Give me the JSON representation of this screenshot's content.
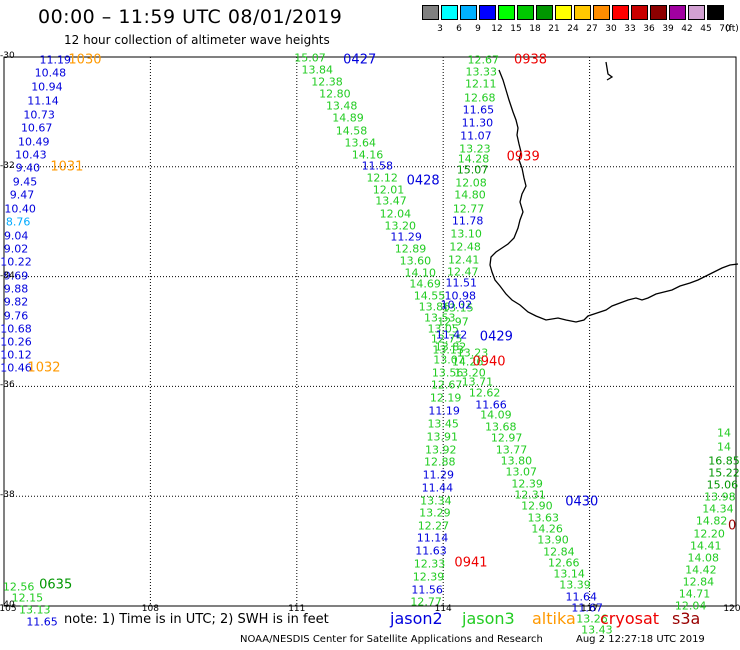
{
  "title": "00:00 – 11:59 UTC 08/01/2019",
  "subtitle": "12 hour collection of altimeter wave heights",
  "colorbar": {
    "unit": "(ft)",
    "entries": [
      {
        "color": "#808080",
        "label": "3"
      },
      {
        "color": "#00ffff",
        "label": "6"
      },
      {
        "color": "#00b0ff",
        "label": "9"
      },
      {
        "color": "#0000ff",
        "label": "12"
      },
      {
        "color": "#00ff00",
        "label": "15"
      },
      {
        "color": "#00c800",
        "label": "18"
      },
      {
        "color": "#009600",
        "label": "21"
      },
      {
        "color": "#ffff00",
        "label": "24"
      },
      {
        "color": "#ffc800",
        "label": "27"
      },
      {
        "color": "#ff8c00",
        "label": "30"
      },
      {
        "color": "#ff0000",
        "label": "33"
      },
      {
        "color": "#c80000",
        "label": "36"
      },
      {
        "color": "#8c0000",
        "label": "39"
      },
      {
        "color": "#a000a0",
        "label": "42"
      },
      {
        "color": "#d2a0d2",
        "label": "45"
      },
      {
        "color": "#000000",
        "label": "70"
      }
    ]
  },
  "axes": {
    "lon_ticks": [
      "105",
      "108",
      "111",
      "114",
      "117",
      "120"
    ],
    "lat_ticks": [
      "-30",
      "-32",
      "-34",
      "-36",
      "-38",
      "-40"
    ],
    "lon_range": [
      105,
      120
    ],
    "lat_range": [
      -30,
      -40
    ]
  },
  "colors": {
    "jason2": "#0000dd",
    "jason3": "#22cc22",
    "altika": "#ff9900",
    "cryosat": "#ee0000",
    "s3a": "#990000",
    "grid": "#000000",
    "coast": "#000000"
  },
  "observations": [
    {
      "t": "11.19",
      "lon": 106.05,
      "lat": -30.05,
      "c": "jason2"
    },
    {
      "t": "10.48",
      "lon": 105.95,
      "lat": -30.3,
      "c": "jason2"
    },
    {
      "t": "10.94",
      "lon": 105.88,
      "lat": -30.55,
      "c": "jason2"
    },
    {
      "t": "11.14",
      "lon": 105.8,
      "lat": -30.8,
      "c": "jason2"
    },
    {
      "t": "10.73",
      "lon": 105.72,
      "lat": -31.05,
      "c": "jason2"
    },
    {
      "t": "10.67",
      "lon": 105.67,
      "lat": -31.3,
      "c": "jason2"
    },
    {
      "t": "10.49",
      "lon": 105.61,
      "lat": -31.55,
      "c": "jason2"
    },
    {
      "t": "10.43",
      "lon": 105.55,
      "lat": -31.78,
      "c": "jason2"
    },
    {
      "t": "9.40",
      "lon": 105.49,
      "lat": -32.02,
      "c": "jason2"
    },
    {
      "t": "9.45",
      "lon": 105.43,
      "lat": -32.27,
      "c": "jason2"
    },
    {
      "t": "9.47",
      "lon": 105.37,
      "lat": -32.52,
      "c": "jason2"
    },
    {
      "t": "10.40",
      "lon": 105.33,
      "lat": -32.76,
      "c": "jason2"
    },
    {
      "t": "8.76",
      "lon": 105.29,
      "lat": -33.01,
      "c": "jason2_light"
    },
    {
      "t": "9.04",
      "lon": 105.25,
      "lat": -33.26,
      "c": "jason2"
    },
    {
      "t": "9.02",
      "lon": 105.21,
      "lat": -33.5,
      "c": "jason2"
    },
    {
      "t": "10.22",
      "lon": 105.17,
      "lat": -33.74,
      "c": "jason2"
    },
    {
      "t": "9.69",
      "lon": 105.13,
      "lat": -33.98,
      "c": "jason2"
    },
    {
      "t": "9.88",
      "lon": 105.09,
      "lat": -34.22,
      "c": "jason2"
    },
    {
      "t": "9.82",
      "lon": 105.05,
      "lat": -34.46,
      "c": "jason2"
    },
    {
      "t": "9.76",
      "lon": 105.02,
      "lat": -34.71,
      "c": "jason2"
    },
    {
      "t": "10.68",
      "lon": 104.99,
      "lat": -34.95,
      "c": "jason2"
    },
    {
      "t": "10.26",
      "lon": 104.96,
      "lat": -35.19,
      "c": "jason2"
    },
    {
      "t": "10.12",
      "lon": 104.93,
      "lat": -35.43,
      "c": "jason2"
    },
    {
      "t": "10.46",
      "lon": 104.9,
      "lat": -35.67,
      "c": "jason2"
    },
    {
      "t": "15.07",
      "lon": 111.27,
      "lat": -30.02,
      "c": "jason3"
    },
    {
      "t": "13.84",
      "lon": 111.42,
      "lat": -30.24,
      "c": "jason3"
    },
    {
      "t": "12.38",
      "lon": 111.62,
      "lat": -30.46,
      "c": "jason3"
    },
    {
      "t": "12.80",
      "lon": 111.78,
      "lat": -30.68,
      "c": "jason3"
    },
    {
      "t": "13.48",
      "lon": 111.92,
      "lat": -30.9,
      "c": "jason3"
    },
    {
      "t": "14.89",
      "lon": 112.05,
      "lat": -31.12,
      "c": "jason3"
    },
    {
      "t": "14.58",
      "lon": 112.12,
      "lat": -31.34,
      "c": "jason3"
    },
    {
      "t": "13.64",
      "lon": 112.3,
      "lat": -31.56,
      "c": "jason3"
    },
    {
      "t": "14.16",
      "lon": 112.45,
      "lat": -31.78,
      "c": "jason3"
    },
    {
      "t": "11.58",
      "lon": 112.65,
      "lat": -31.99,
      "c": "jason2"
    },
    {
      "t": "12.12",
      "lon": 112.75,
      "lat": -32.21,
      "c": "jason3"
    },
    {
      "t": "12.01",
      "lon": 112.88,
      "lat": -32.43,
      "c": "jason3"
    },
    {
      "t": "13.47",
      "lon": 112.93,
      "lat": -32.63,
      "c": "jason3"
    },
    {
      "t": "12.04",
      "lon": 113.02,
      "lat": -32.86,
      "c": "jason3"
    },
    {
      "t": "13.20",
      "lon": 113.12,
      "lat": -33.07,
      "c": "jason3"
    },
    {
      "t": "11.29",
      "lon": 113.24,
      "lat": -33.28,
      "c": "jason2"
    },
    {
      "t": "12.89",
      "lon": 113.33,
      "lat": -33.5,
      "c": "jason3"
    },
    {
      "t": "13.60",
      "lon": 113.43,
      "lat": -33.72,
      "c": "jason3"
    },
    {
      "t": "14.10",
      "lon": 113.53,
      "lat": -33.93,
      "c": "jason3"
    },
    {
      "t": "14.69",
      "lon": 113.63,
      "lat": -34.14,
      "c": "jason3"
    },
    {
      "t": "14.55",
      "lon": 113.72,
      "lat": -34.35,
      "c": "jason3"
    },
    {
      "t": "13.86",
      "lon": 113.82,
      "lat": -34.55,
      "c": "jason3"
    },
    {
      "t": "13.53",
      "lon": 113.93,
      "lat": -34.75,
      "c": "jason3"
    },
    {
      "t": "13.05",
      "lon": 114.0,
      "lat": -34.95,
      "c": "jason3"
    },
    {
      "t": "12.75",
      "lon": 114.07,
      "lat": -35.14,
      "c": "jason3"
    },
    {
      "t": "13.13",
      "lon": 114.1,
      "lat": -35.34,
      "c": "jason3"
    },
    {
      "t": "12.67",
      "lon": 114.82,
      "lat": -30.05,
      "c": "jason3"
    },
    {
      "t": "13.33",
      "lon": 114.78,
      "lat": -30.28,
      "c": "jason3"
    },
    {
      "t": "12.11",
      "lon": 114.77,
      "lat": -30.5,
      "c": "jason3"
    },
    {
      "t": "12.68",
      "lon": 114.75,
      "lat": -30.74,
      "c": "jason3"
    },
    {
      "t": "11.65",
      "lon": 114.72,
      "lat": -30.97,
      "c": "jason2"
    },
    {
      "t": "11.30",
      "lon": 114.7,
      "lat": -31.21,
      "c": "jason2"
    },
    {
      "t": "11.07",
      "lon": 114.67,
      "lat": -31.44,
      "c": "jason2"
    },
    {
      "t": "13.23",
      "lon": 114.65,
      "lat": -31.67,
      "c": "jason3"
    },
    {
      "t": "14.28",
      "lon": 114.62,
      "lat": -31.85,
      "c": "jason3"
    },
    {
      "t": "15.07",
      "lon": 114.6,
      "lat": -32.05,
      "c": "jason3_dark"
    },
    {
      "t": "12.08",
      "lon": 114.57,
      "lat": -32.29,
      "c": "jason3"
    },
    {
      "t": "14.80",
      "lon": 114.55,
      "lat": -32.52,
      "c": "jason3"
    },
    {
      "t": "12.77",
      "lon": 114.52,
      "lat": -32.76,
      "c": "jason3"
    },
    {
      "t": "11.78",
      "lon": 114.5,
      "lat": -32.99,
      "c": "jason2"
    },
    {
      "t": "13.10",
      "lon": 114.47,
      "lat": -33.23,
      "c": "jason3"
    },
    {
      "t": "12.48",
      "lon": 114.45,
      "lat": -33.46,
      "c": "jason3"
    },
    {
      "t": "12.41",
      "lon": 114.42,
      "lat": -33.69,
      "c": "jason3"
    },
    {
      "t": "12.47",
      "lon": 114.4,
      "lat": -33.92,
      "c": "jason3"
    },
    {
      "t": "11.51",
      "lon": 114.37,
      "lat": -34.12,
      "c": "jason2"
    },
    {
      "t": "10.98",
      "lon": 114.35,
      "lat": -34.35,
      "c": "jason2"
    },
    {
      "t": "13.15",
      "lon": 114.3,
      "lat": -34.58,
      "c": "jason3"
    },
    {
      "t": "10.02",
      "lon": 114.27,
      "lat": -34.51,
      "c": "jason2"
    },
    {
      "t": "12.97",
      "lon": 114.2,
      "lat": -34.83,
      "c": "jason3"
    },
    {
      "t": "11.42",
      "lon": 114.17,
      "lat": -35.06,
      "c": "jason2"
    },
    {
      "t": "13.82",
      "lon": 114.15,
      "lat": -35.29,
      "c": "jason3"
    },
    {
      "t": "13.07",
      "lon": 114.12,
      "lat": -35.52,
      "c": "jason3"
    },
    {
      "t": "13.56",
      "lon": 114.09,
      "lat": -35.75,
      "c": "jason3"
    },
    {
      "t": "12.67",
      "lon": 114.07,
      "lat": -35.98,
      "c": "jason3"
    },
    {
      "t": "12.19",
      "lon": 114.05,
      "lat": -36.22,
      "c": "jason3"
    },
    {
      "t": "11.19",
      "lon": 114.02,
      "lat": -36.45,
      "c": "jason2"
    },
    {
      "t": "13.45",
      "lon": 114.0,
      "lat": -36.68,
      "c": "jason3"
    },
    {
      "t": "13.91",
      "lon": 113.98,
      "lat": -36.92,
      "c": "jason3"
    },
    {
      "t": "13.92",
      "lon": 113.95,
      "lat": -37.15,
      "c": "jason3"
    },
    {
      "t": "12.88",
      "lon": 113.93,
      "lat": -37.38,
      "c": "jason3"
    },
    {
      "t": "11.29",
      "lon": 113.9,
      "lat": -37.61,
      "c": "jason2"
    },
    {
      "t": "11.44",
      "lon": 113.88,
      "lat": -37.85,
      "c": "jason2"
    },
    {
      "t": "13.34",
      "lon": 113.85,
      "lat": -38.08,
      "c": "jason3"
    },
    {
      "t": "13.29",
      "lon": 113.83,
      "lat": -38.31,
      "c": "jason3"
    },
    {
      "t": "12.27",
      "lon": 113.8,
      "lat": -38.54,
      "c": "jason3"
    },
    {
      "t": "11.14",
      "lon": 113.78,
      "lat": -38.77,
      "c": "jason2"
    },
    {
      "t": "11.63",
      "lon": 113.75,
      "lat": -39.0,
      "c": "jason2"
    },
    {
      "t": "12.33",
      "lon": 113.72,
      "lat": -39.24,
      "c": "jason3"
    },
    {
      "t": "12.39",
      "lon": 113.7,
      "lat": -39.47,
      "c": "jason3"
    },
    {
      "t": "11.56",
      "lon": 113.67,
      "lat": -39.7,
      "c": "jason2"
    },
    {
      "t": "12.77",
      "lon": 113.65,
      "lat": -39.93,
      "c": "jason3"
    },
    {
      "t": "13.23",
      "lon": 114.6,
      "lat": -35.4,
      "c": "jason3"
    },
    {
      "t": "14.26",
      "lon": 114.5,
      "lat": -35.55,
      "c": "jason3"
    },
    {
      "t": "13.20",
      "lon": 114.55,
      "lat": -35.75,
      "c": "jason3"
    },
    {
      "t": "13.71",
      "lon": 114.7,
      "lat": -35.92,
      "c": "jason3"
    },
    {
      "t": "12.62",
      "lon": 114.85,
      "lat": -36.12,
      "c": "jason3"
    },
    {
      "t": "11.66",
      "lon": 114.98,
      "lat": -36.33,
      "c": "jason2"
    },
    {
      "t": "14.09",
      "lon": 115.08,
      "lat": -36.53,
      "c": "jason3"
    },
    {
      "t": "13.68",
      "lon": 115.18,
      "lat": -36.74,
      "c": "jason3"
    },
    {
      "t": "12.97",
      "lon": 115.3,
      "lat": -36.94,
      "c": "jason3"
    },
    {
      "t": "13.77",
      "lon": 115.4,
      "lat": -37.15,
      "c": "jason3"
    },
    {
      "t": "13.80",
      "lon": 115.5,
      "lat": -37.36,
      "c": "jason3"
    },
    {
      "t": "13.07",
      "lon": 115.6,
      "lat": -37.56,
      "c": "jason3"
    },
    {
      "t": "12.39",
      "lon": 115.72,
      "lat": -37.77,
      "c": "jason3"
    },
    {
      "t": "12.31",
      "lon": 115.78,
      "lat": -37.98,
      "c": "jason3"
    },
    {
      "t": "12.90",
      "lon": 115.92,
      "lat": -38.18,
      "c": "jason3"
    },
    {
      "t": "13.63",
      "lon": 116.05,
      "lat": -38.39,
      "c": "jason3"
    },
    {
      "t": "14.26",
      "lon": 116.13,
      "lat": -38.6,
      "c": "jason3"
    },
    {
      "t": "13.90",
      "lon": 116.25,
      "lat": -38.8,
      "c": "jason3"
    },
    {
      "t": "12.84",
      "lon": 116.37,
      "lat": -39.01,
      "c": "jason3"
    },
    {
      "t": "12.66",
      "lon": 116.47,
      "lat": -39.21,
      "c": "jason3"
    },
    {
      "t": "13.14",
      "lon": 116.58,
      "lat": -39.42,
      "c": "jason3"
    },
    {
      "t": "13.39",
      "lon": 116.7,
      "lat": -39.62,
      "c": "jason3"
    },
    {
      "t": "11.64",
      "lon": 116.83,
      "lat": -39.83,
      "c": "jason2"
    },
    {
      "t": "11.67",
      "lon": 116.95,
      "lat": -40.03,
      "c": "jason2"
    },
    {
      "t": "13.26",
      "lon": 117.05,
      "lat": -40.24,
      "c": "jason3"
    },
    {
      "t": "13.43",
      "lon": 117.15,
      "lat": -40.44,
      "c": "jason3"
    },
    {
      "t": "16.85",
      "lon": 119.85,
      "lat": -37.35,
      "c": "jason3_dark"
    },
    {
      "t": "15.22",
      "lon": 119.82,
      "lat": -37.58,
      "c": "jason3_dark"
    },
    {
      "t": "15.06",
      "lon": 119.72,
      "lat": -37.8,
      "c": "jason3_dark"
    },
    {
      "t": "13.98",
      "lon": 119.67,
      "lat": -38.02,
      "c": "jason3"
    },
    {
      "t": "14.34",
      "lon": 119.63,
      "lat": -38.24,
      "c": "jason3"
    },
    {
      "t": "14.82",
      "lon": 119.5,
      "lat": -38.46,
      "c": "jason3"
    },
    {
      "t": "12.20",
      "lon": 119.45,
      "lat": -38.68,
      "c": "jason3"
    },
    {
      "t": "14.41",
      "lon": 119.38,
      "lat": -38.9,
      "c": "jason3"
    },
    {
      "t": "14.08",
      "lon": 119.33,
      "lat": -39.12,
      "c": "jason3"
    },
    {
      "t": "14.42",
      "lon": 119.28,
      "lat": -39.34,
      "c": "jason3"
    },
    {
      "t": "12.84",
      "lon": 119.23,
      "lat": -39.56,
      "c": "jason3"
    },
    {
      "t": "14.71",
      "lon": 119.15,
      "lat": -39.78,
      "c": "jason3"
    },
    {
      "t": "12.04",
      "lon": 119.07,
      "lat": -40.0,
      "c": "jason3"
    },
    {
      "t": "14",
      "lon": 119.95,
      "lat": -36.85,
      "c": "jason3"
    },
    {
      "t": "14",
      "lon": 119.95,
      "lat": -37.1,
      "c": "jason3"
    },
    {
      "t": "12.56",
      "lon": 105.3,
      "lat": -39.65,
      "c": "jason3"
    },
    {
      "t": "12.15",
      "lon": 105.48,
      "lat": -39.86,
      "c": "jason3"
    },
    {
      "t": "13.13",
      "lon": 105.63,
      "lat": -40.08,
      "c": "jason3"
    },
    {
      "t": "11.65",
      "lon": 105.78,
      "lat": -40.3,
      "c": "jason2"
    }
  ],
  "time_labels": [
    {
      "t": "1030",
      "lon": 106.32,
      "lat": -30.05,
      "c": "altika"
    },
    {
      "t": "1031",
      "lon": 105.95,
      "lat": -32.0,
      "c": "altika"
    },
    {
      "t": "1032",
      "lon": 105.48,
      "lat": -35.66,
      "c": "altika"
    },
    {
      "t": "0427",
      "lon": 111.95,
      "lat": -30.05,
      "c": "jason2"
    },
    {
      "t": "0428",
      "lon": 113.25,
      "lat": -32.26,
      "c": "jason2"
    },
    {
      "t": "0429",
      "lon": 114.75,
      "lat": -35.1,
      "c": "jason2"
    },
    {
      "t": "0430",
      "lon": 116.5,
      "lat": -38.1,
      "c": "jason2"
    },
    {
      "t": "0938",
      "lon": 115.45,
      "lat": -30.05,
      "c": "cryosat"
    },
    {
      "t": "0939",
      "lon": 115.3,
      "lat": -31.82,
      "c": "cryosat"
    },
    {
      "t": "0940",
      "lon": 114.6,
      "lat": -35.55,
      "c": "cryosat"
    },
    {
      "t": "0941",
      "lon": 114.23,
      "lat": -39.22,
      "c": "cryosat"
    },
    {
      "t": "0635",
      "lon": 105.72,
      "lat": -39.62,
      "c": "jason3_dark"
    },
    {
      "t": "0",
      "lon": 119.9,
      "lat": -38.54,
      "c": "s3a"
    }
  ],
  "footer": {
    "note": "note:  1) Time is in UTC;  2) SWH is in feet",
    "satellites": [
      {
        "name": "jason2",
        "key": "jason2"
      },
      {
        "name": "jason3",
        "key": "jason3"
      },
      {
        "name": "altika",
        "key": "altika"
      },
      {
        "name": "cryosat",
        "key": "cryosat"
      },
      {
        "name": "s3a",
        "key": "s3a"
      }
    ],
    "credit": "NOAA/NESDIS Center for Satellite Applications and Research",
    "stamp": "Aug  2 12:27:18 UTC 2019"
  }
}
